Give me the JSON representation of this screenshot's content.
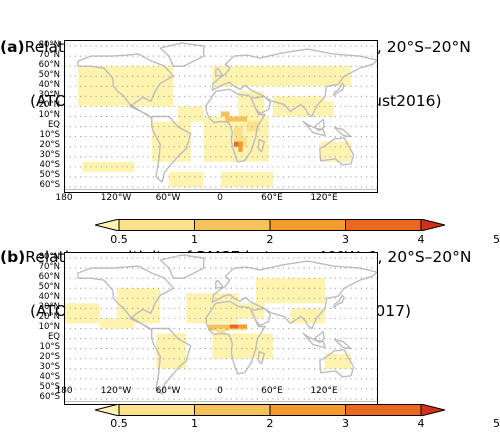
{
  "panels": [
    {
      "label": "(a)",
      "title_line1": "Relative sensitivity of RMSE between 40°W–0, 20°S–20°N",
      "title_line2": "(ATOM–1) to posterior fluxes (June2016–August2016)",
      "hotspot": "central-africa-southern"
    },
    {
      "label": "(b)",
      "title_line1": "Relative sensitivity of RMSE between 40°W–0, 20°S–20°N",
      "title_line2": "(ATOM–2) to posterior fluxes (Dec2016–Feb2017)",
      "hotspot": "sahel-northern"
    }
  ],
  "lat_labels": [
    "80°N",
    "70°N",
    "60°N",
    "50°N",
    "40°N",
    "30°N",
    "20°N",
    "10°N",
    "EQ",
    "10°S",
    "20°S",
    "30°S",
    "40°S",
    "50°S",
    "60°S"
  ],
  "lon_labels": [
    "180",
    "120°W",
    "60°W",
    "0",
    "60°E",
    "120°E"
  ],
  "colorbar": {
    "levels": [
      "0.5",
      "1",
      "2",
      "3",
      "4",
      "5"
    ],
    "colors": [
      "#fff3b0",
      "#fde08a",
      "#f8c25a",
      "#f39b2f",
      "#ea6820",
      "#d3301a"
    ]
  },
  "colors": {
    "land_outline": "#bdbdbd",
    "grid_dots": "#9a9a9a"
  }
}
